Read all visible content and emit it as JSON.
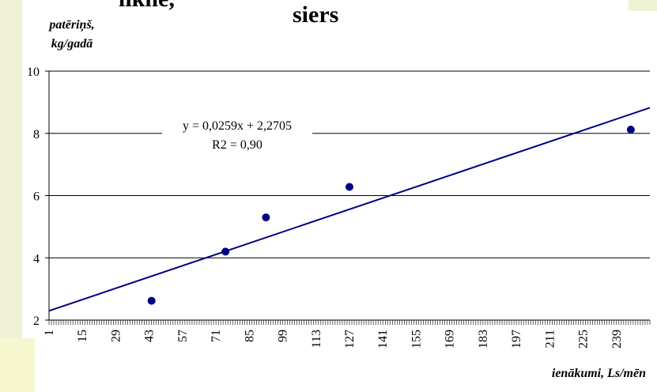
{
  "chart_data": {
    "type": "scatter",
    "title": "siers",
    "title_partial_top": "likne,",
    "ylabel": "patēriņš, kg/gadā",
    "xlabel": "ienākumi, Ls/mēn",
    "ylim": [
      2,
      10
    ],
    "yticks": [
      "2",
      "4",
      "6",
      "8",
      "10"
    ],
    "xlim": [
      1,
      253
    ],
    "xticks": [
      "1",
      "15",
      "29",
      "43",
      "57",
      "71",
      "85",
      "99",
      "113",
      "127",
      "141",
      "155",
      "169",
      "183",
      "197",
      "211",
      "225",
      "239"
    ],
    "grid": true,
    "points": [
      {
        "x": 44,
        "y": 2.62
      },
      {
        "x": 75,
        "y": 4.2
      },
      {
        "x": 92,
        "y": 5.3
      },
      {
        "x": 127,
        "y": 6.28
      },
      {
        "x": 245,
        "y": 8.12
      }
    ],
    "trendline": {
      "slope": 0.0259,
      "intercept": 2.2705
    },
    "equation_label": "y = 0,0259x + 2,2705",
    "r2_label": "R2 = 0,90",
    "colors": {
      "marker": "#000080",
      "trendline": "#000080",
      "grid": "#000000"
    }
  }
}
